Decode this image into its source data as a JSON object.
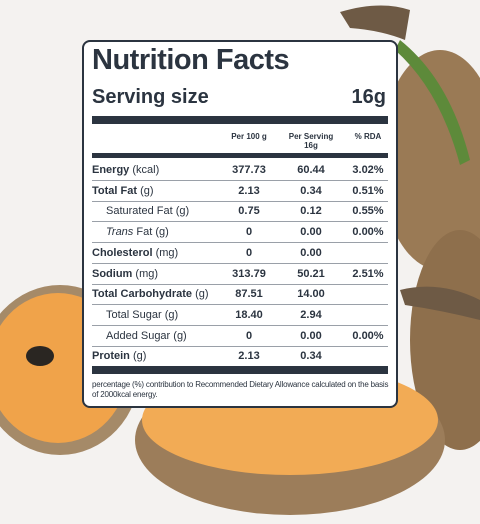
{
  "label": {
    "title": "Nutrition Facts",
    "serving_label": "Serving size",
    "serving_value": "16g",
    "headers": {
      "per100": "Per 100 g",
      "per_serving": "Per Serving",
      "per_serving_size": "16g",
      "rda": "% RDA"
    },
    "rows": [
      {
        "name": "Energy",
        "unit": "(kcal)",
        "per100": "377.73",
        "serving": "60.44",
        "rda": "3.02%",
        "bold": true,
        "indent": false
      },
      {
        "name": "Total Fat",
        "unit": "(g)",
        "per100": "2.13",
        "serving": "0.34",
        "rda": "0.51%",
        "bold": true,
        "indent": false
      },
      {
        "name": "Saturated Fat",
        "unit": "(g)",
        "per100": "0.75",
        "serving": "0.12",
        "rda": "0.55%",
        "bold": false,
        "indent": true
      },
      {
        "italic": "Trans",
        "name": "Fat",
        "unit": "(g)",
        "per100": "0",
        "serving": "0.00",
        "rda": "0.00%",
        "bold": false,
        "indent": true
      },
      {
        "name": "Cholesterol",
        "unit": "(mg)",
        "per100": "0",
        "serving": "0.00",
        "rda": null,
        "bold": true,
        "indent": false
      },
      {
        "name": "Sodium",
        "unit": "(mg)",
        "per100": "313.79",
        "serving": "50.21",
        "rda": "2.51%",
        "bold": true,
        "indent": false
      },
      {
        "name": "Total Carbohydrate",
        "unit": "(g)",
        "per100": "87.51",
        "serving": "14.00",
        "rda": null,
        "bold": true,
        "indent": false
      },
      {
        "name": "Total Sugar",
        "unit": "(g)",
        "per100": "18.40",
        "serving": "2.94",
        "rda": null,
        "bold": false,
        "indent": true
      },
      {
        "name": "Added Sugar",
        "unit": "(g)",
        "per100": "0",
        "serving": "0.00",
        "rda": "0.00%",
        "bold": false,
        "indent": true
      },
      {
        "name": "Protein",
        "unit": "(g)",
        "per100": "2.13",
        "serving": "0.34",
        "rda": null,
        "bold": true,
        "indent": false
      }
    ],
    "footnote": "percentage (%) contribution to Recommended Dietary Allowance calculated on the basis of 2000kcal energy."
  }
}
